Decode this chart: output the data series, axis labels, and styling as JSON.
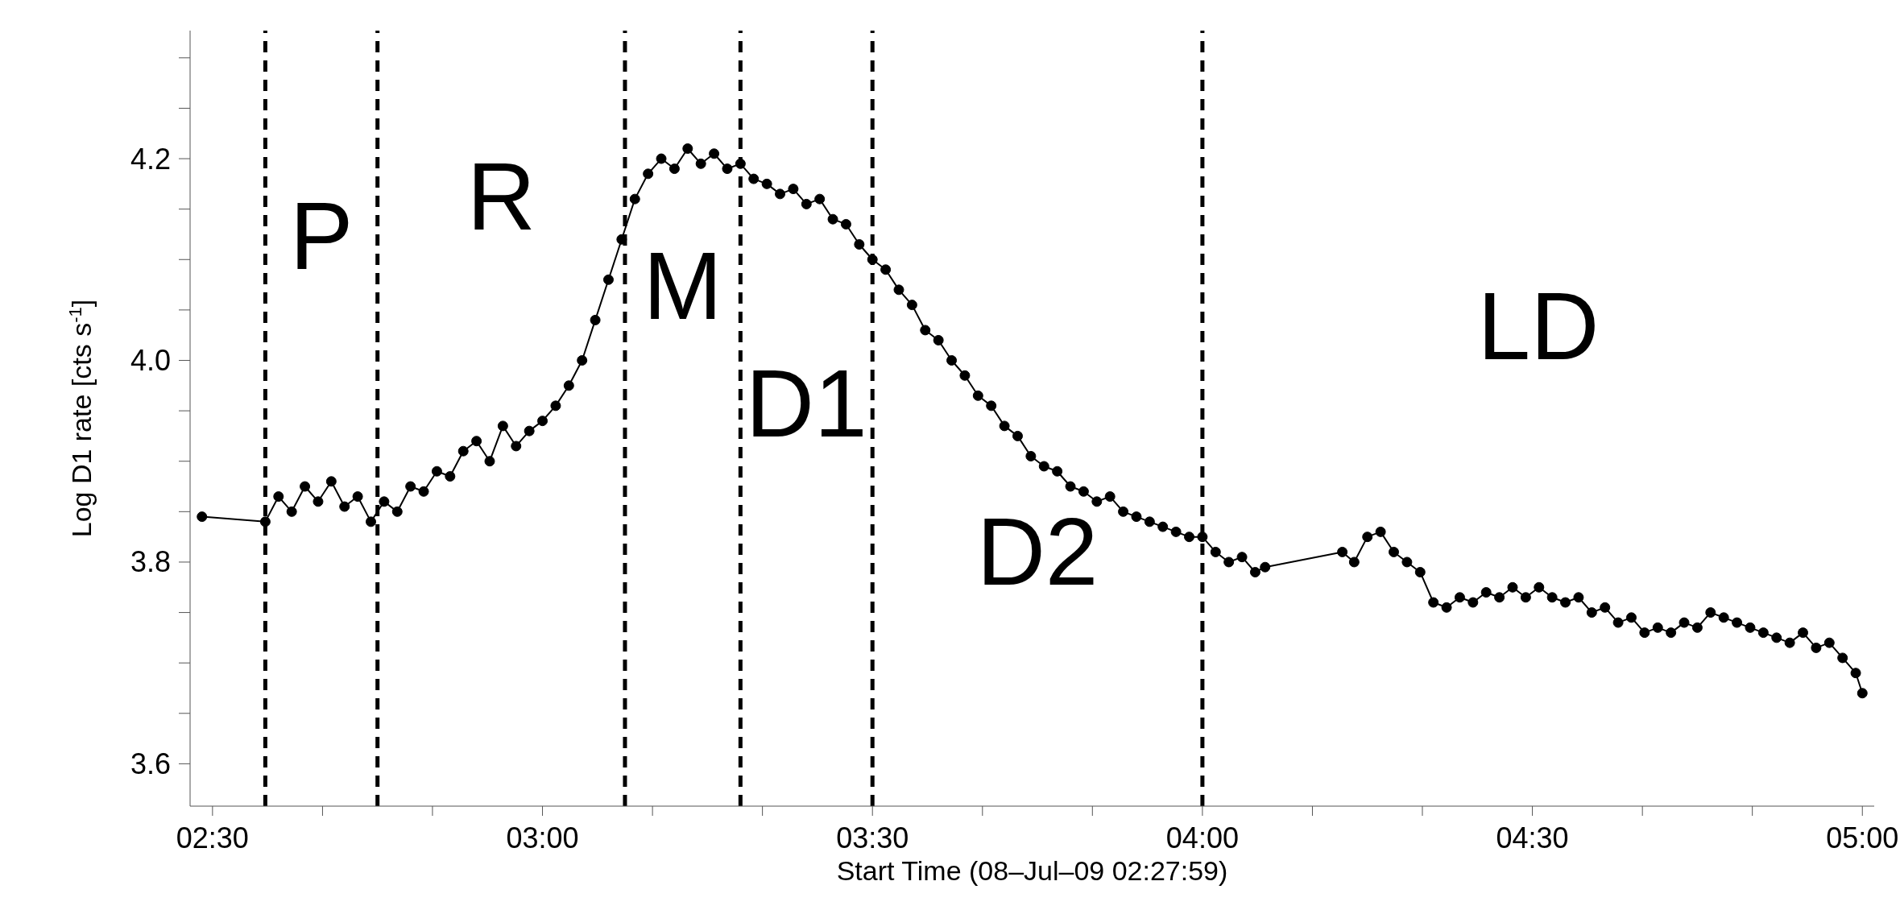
{
  "chart_data": {
    "type": "line",
    "xlabel": "Start Time (08–Jul–09 02:27:59)",
    "ylabel": "Log D1 rate [cts s$^{-1}$]",
    "xlim": [
      2.466,
      5.018
    ],
    "ylim": [
      3.558,
      4.327
    ],
    "xticks": [
      {
        "value": 2.5,
        "label": "02:30"
      },
      {
        "value": 2.6667,
        "label": null
      },
      {
        "value": 2.8333,
        "label": null
      },
      {
        "value": 3,
        "label": "03:00"
      },
      {
        "value": 3.1667,
        "label": null
      },
      {
        "value": 3.3333,
        "label": null
      },
      {
        "value": 3.5,
        "label": "03:30"
      },
      {
        "value": 3.6667,
        "label": null
      },
      {
        "value": 3.8333,
        "label": null
      },
      {
        "value": 4,
        "label": "04:00"
      },
      {
        "value": 4.1667,
        "label": null
      },
      {
        "value": 4.3333,
        "label": null
      },
      {
        "value": 4.5,
        "label": "04:30"
      },
      {
        "value": 4.6667,
        "label": null
      },
      {
        "value": 4.8333,
        "label": null
      },
      {
        "value": 5,
        "label": "05:00"
      }
    ],
    "yticks": [
      {
        "value": 3.6,
        "label": "3.6"
      },
      {
        "value": 3.65,
        "label": null
      },
      {
        "value": 3.7,
        "label": null
      },
      {
        "value": 3.75,
        "label": null
      },
      {
        "value": 3.8,
        "label": "3.8"
      },
      {
        "value": 3.85,
        "label": null
      },
      {
        "value": 3.9,
        "label": null
      },
      {
        "value": 3.95,
        "label": null
      },
      {
        "value": 4.0,
        "label": "4.0"
      },
      {
        "value": 4.05,
        "label": null
      },
      {
        "value": 4.1,
        "label": null
      },
      {
        "value": 4.15,
        "label": null
      },
      {
        "value": 4.2,
        "label": "4.2"
      },
      {
        "value": 4.25,
        "label": null
      },
      {
        "value": 4.3,
        "label": null
      }
    ],
    "marker": "circle",
    "line_style": "solid",
    "grid": false,
    "legend": false,
    "ref_lines": [
      {
        "axis": "x",
        "value": 2.58,
        "color": "#000000",
        "line_style": "dashed"
      },
      {
        "axis": "x",
        "value": 2.75,
        "color": "#000000",
        "line_style": "dashed"
      },
      {
        "axis": "x",
        "value": 3.125,
        "color": "#000000",
        "line_style": "dashed"
      },
      {
        "axis": "x",
        "value": 3.3,
        "color": "#000000",
        "line_style": "dashed"
      },
      {
        "axis": "x",
        "value": 3.5,
        "color": "#000000",
        "line_style": "dashed"
      },
      {
        "axis": "x",
        "value": 4.0,
        "color": "#000000",
        "line_style": "dashed"
      }
    ],
    "annotations": [
      "P",
      "R",
      "M",
      "D1",
      "D2",
      "LD"
    ],
    "series": [
      {
        "color": "#000000",
        "x": [
          2.484,
          2.58,
          2.6,
          2.62,
          2.64,
          2.66,
          2.68,
          2.7,
          2.72,
          2.74,
          2.76,
          2.78,
          2.8,
          2.82,
          2.84,
          2.86,
          2.88,
          2.9,
          2.92,
          2.94,
          2.96,
          2.98,
          3.0,
          3.02,
          3.04,
          3.06,
          3.08,
          3.1,
          3.12,
          3.14,
          3.16,
          3.18,
          3.2,
          3.22,
          3.24,
          3.26,
          3.28,
          3.3,
          3.32,
          3.34,
          3.36,
          3.38,
          3.4,
          3.42,
          3.44,
          3.46,
          3.48,
          3.5,
          3.52,
          3.54,
          3.56,
          3.58,
          3.6,
          3.62,
          3.64,
          3.66,
          3.68,
          3.7,
          3.72,
          3.74,
          3.76,
          3.78,
          3.8,
          3.82,
          3.84,
          3.86,
          3.88,
          3.9,
          3.92,
          3.94,
          3.96,
          3.98,
          4.0,
          4.02,
          4.04,
          4.06,
          4.08,
          4.095,
          4.212,
          4.23,
          4.25,
          4.27,
          4.29,
          4.31,
          4.33,
          4.35,
          4.37,
          4.39,
          4.41,
          4.43,
          4.45,
          4.47,
          4.49,
          4.51,
          4.53,
          4.55,
          4.57,
          4.59,
          4.61,
          4.63,
          4.65,
          4.67,
          4.69,
          4.71,
          4.73,
          4.75,
          4.77,
          4.79,
          4.81,
          4.83,
          4.85,
          4.87,
          4.89,
          4.91,
          4.93,
          4.95,
          4.97,
          4.99,
          5.0
        ],
        "values": [
          3.845,
          3.84,
          3.865,
          3.85,
          3.875,
          3.86,
          3.88,
          3.855,
          3.865,
          3.84,
          3.86,
          3.85,
          3.875,
          3.87,
          3.89,
          3.885,
          3.91,
          3.92,
          3.9,
          3.935,
          3.915,
          3.93,
          3.94,
          3.955,
          3.975,
          4.0,
          4.04,
          4.08,
          4.12,
          4.16,
          4.185,
          4.2,
          4.19,
          4.21,
          4.195,
          4.205,
          4.19,
          4.195,
          4.18,
          4.175,
          4.165,
          4.17,
          4.155,
          4.16,
          4.14,
          4.135,
          4.115,
          4.1,
          4.09,
          4.07,
          4.055,
          4.03,
          4.02,
          4.0,
          3.985,
          3.965,
          3.955,
          3.935,
          3.925,
          3.905,
          3.895,
          3.89,
          3.875,
          3.87,
          3.86,
          3.865,
          3.85,
          3.845,
          3.84,
          3.835,
          3.83,
          3.825,
          3.825,
          3.81,
          3.8,
          3.805,
          3.79,
          3.795,
          3.81,
          3.8,
          3.825,
          3.83,
          3.81,
          3.8,
          3.79,
          3.76,
          3.755,
          3.765,
          3.76,
          3.77,
          3.765,
          3.775,
          3.765,
          3.775,
          3.765,
          3.76,
          3.765,
          3.75,
          3.755,
          3.74,
          3.745,
          3.73,
          3.735,
          3.73,
          3.74,
          3.735,
          3.75,
          3.745,
          3.74,
          3.735,
          3.73,
          3.725,
          3.72,
          3.73,
          3.715,
          3.72,
          3.705,
          3.69,
          3.67
        ]
      }
    ]
  }
}
